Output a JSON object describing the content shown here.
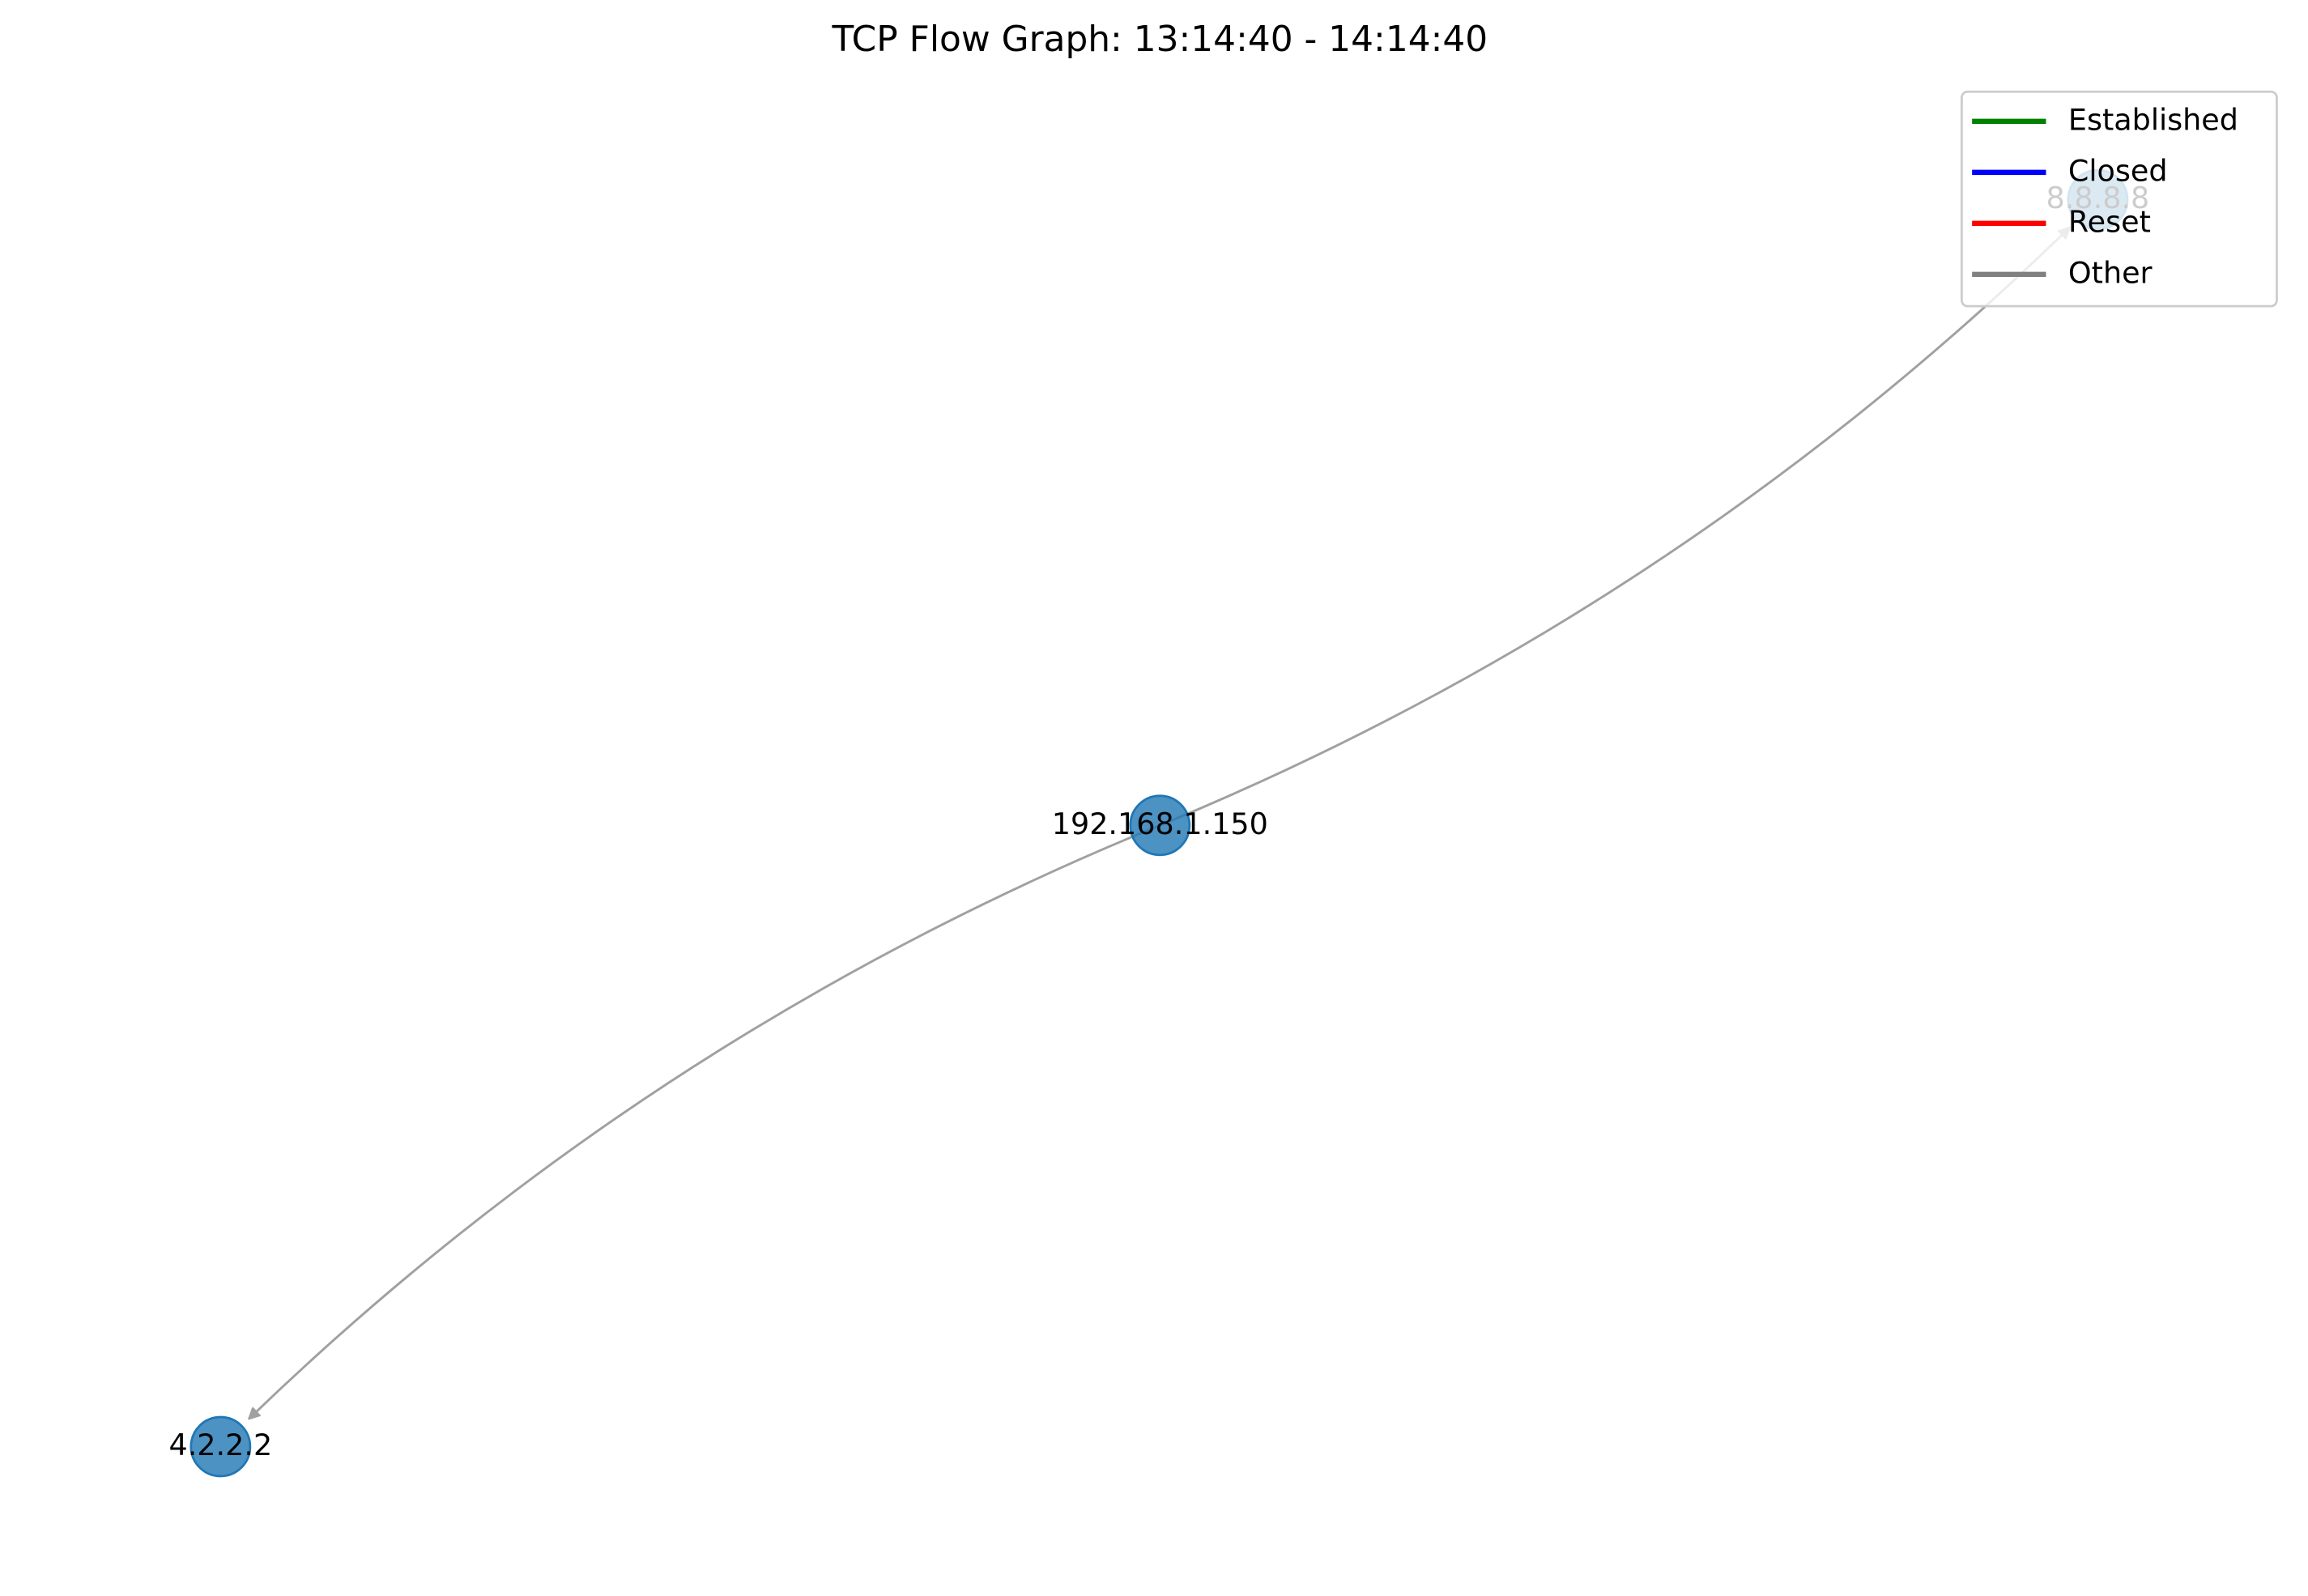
{
  "title": "TCP Flow Graph: 13:14:40 - 14:14:40",
  "nodes": [
    {
      "label": "192.168.1.150"
    },
    {
      "label": "8.8.8.8"
    },
    {
      "label": "4.2.2.2"
    }
  ],
  "edges": [
    {
      "source": 0,
      "target": 1
    },
    {
      "source": 0,
      "target": 2
    }
  ],
  "edge_color": "gray",
  "legend": [
    {
      "label": "Established",
      "color": "green"
    },
    {
      "label": "Closed",
      "color": "blue"
    },
    {
      "label": "Reset",
      "color": "red"
    },
    {
      "label": "Other",
      "color": "gray"
    }
  ]
}
